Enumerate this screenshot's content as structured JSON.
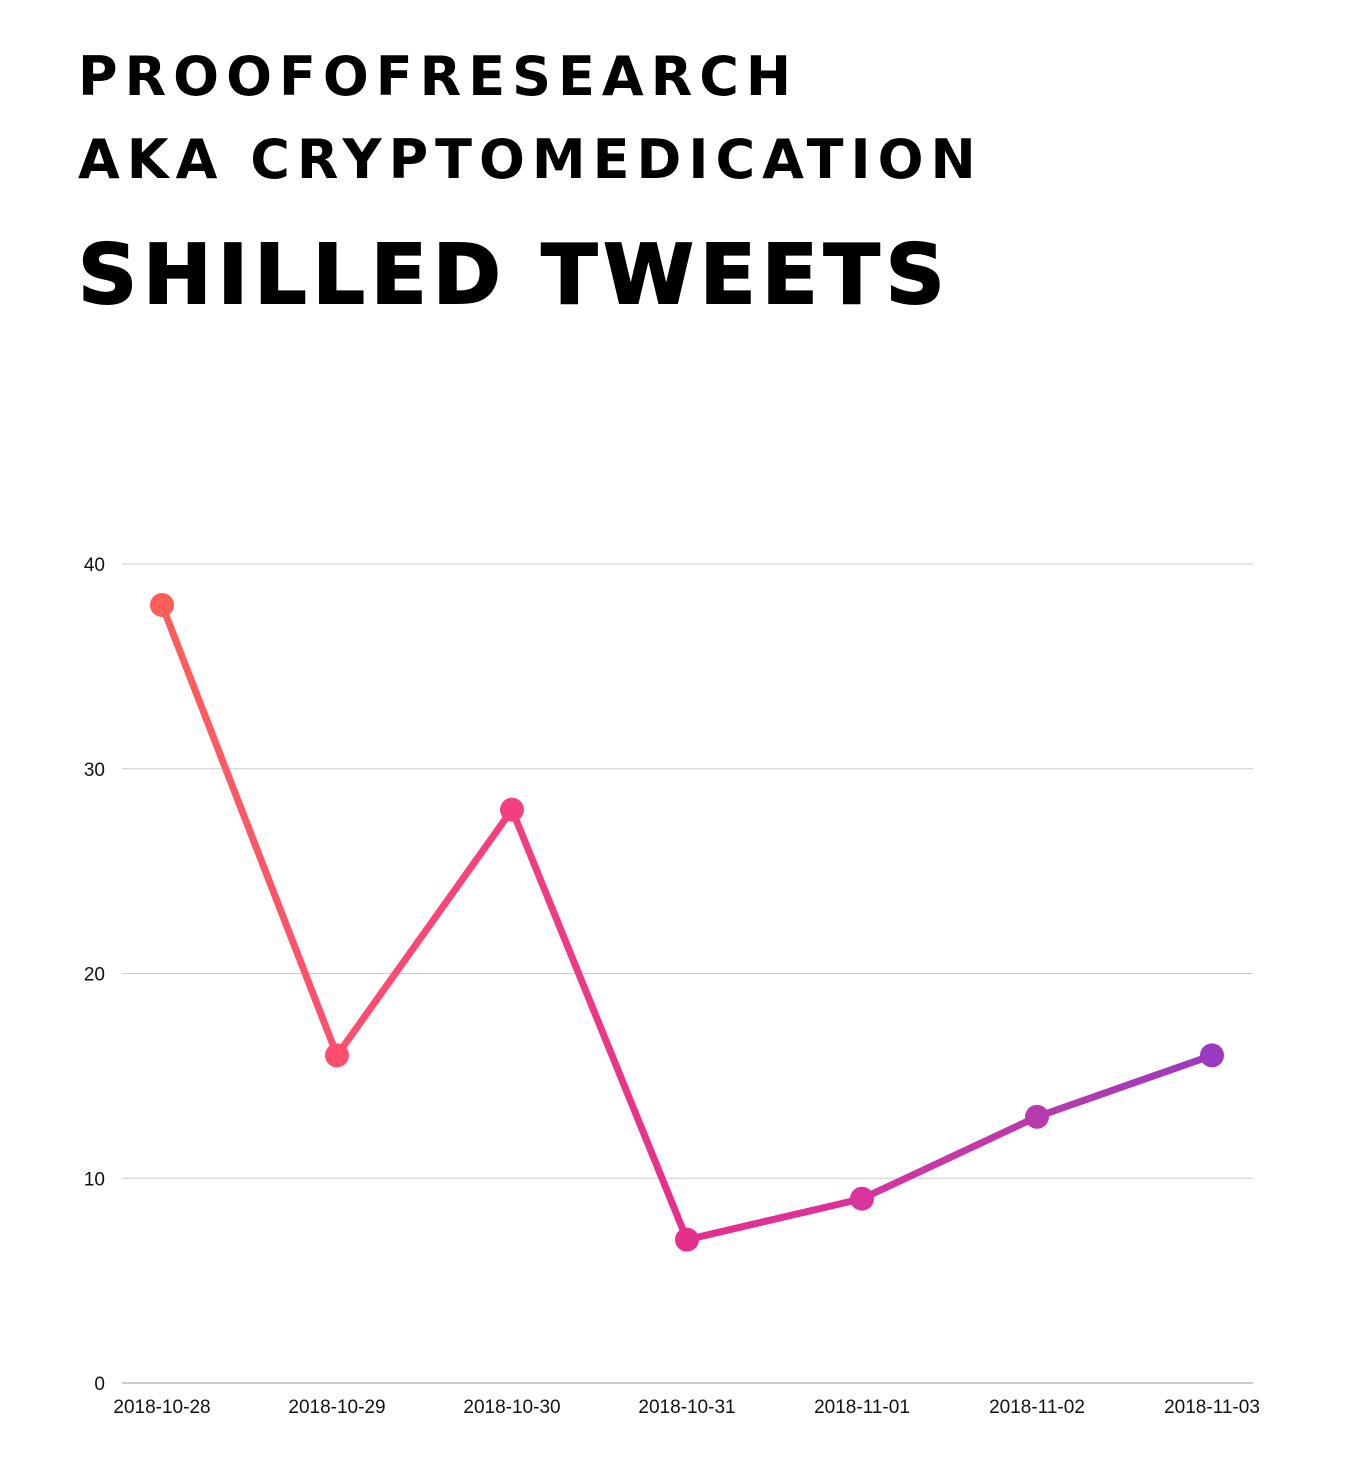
{
  "header": {
    "line1": "PROOFOFRESEARCH",
    "line2": "AKA CRYPTOMEDICATION",
    "title": "SHILLED TWEETS"
  },
  "chart_data": {
    "type": "line",
    "title": "SHILLED TWEETS",
    "xlabel": "",
    "ylabel": "",
    "categories": [
      "2018-10-28",
      "2018-10-29",
      "2018-10-30",
      "2018-10-31",
      "2018-11-01",
      "2018-11-02",
      "2018-11-03"
    ],
    "values": [
      38,
      16,
      28,
      7,
      9,
      13,
      16
    ],
    "ylim": [
      0,
      40
    ],
    "yticks": [
      0,
      10,
      20,
      30,
      40
    ],
    "grid": true,
    "legend": "none",
    "colors": [
      "#ff5e5b",
      "#ff4f6e",
      "#f23f7f",
      "#e62e8c",
      "#d9339f",
      "#b83aad",
      "#9a3abf"
    ]
  }
}
